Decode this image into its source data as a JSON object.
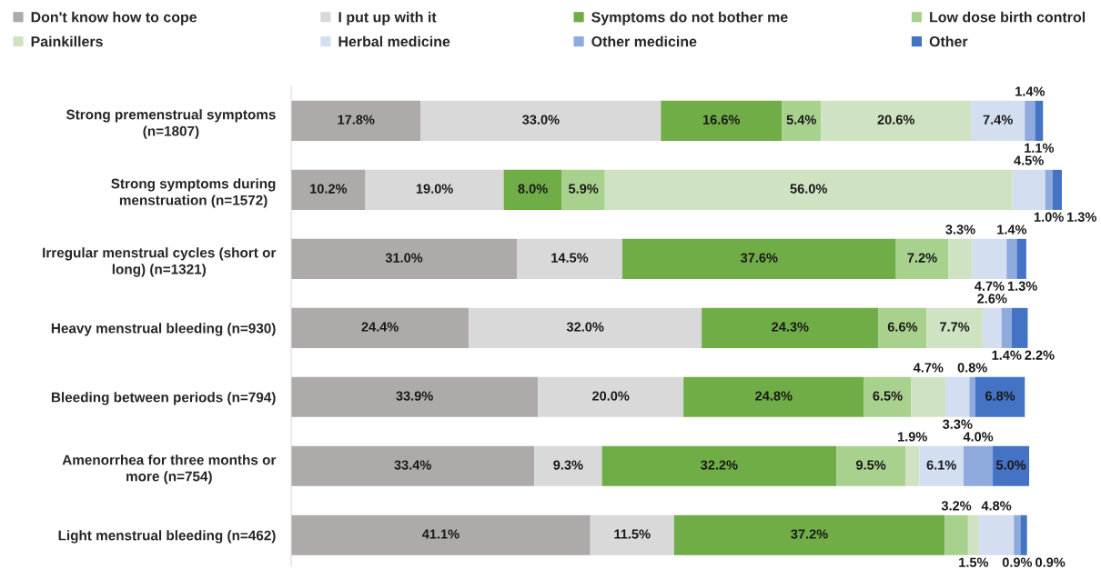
{
  "chart_data": {
    "type": "bar",
    "orientation": "horizontal",
    "stacked": true,
    "categories": [
      "Strong premenstrual symptoms\n(n=1807)",
      "Strong symptoms during\nmenstruation (n=1572)",
      "Irregular menstrual cycles (short or\nlong) (n=1321)",
      "Heavy menstrual bleeding (n=930)",
      "Bleeding between periods (n=794)",
      "Amenorrhea for three months or\nmore (n=754)",
      "Light menstrual bleeding (n=462)"
    ],
    "series": [
      {
        "name": "Don't know how to cope",
        "color": "#aeaaaa",
        "values": [
          17.8,
          10.2,
          31.0,
          24.4,
          33.9,
          33.4,
          41.1
        ],
        "value_labels": [
          "17.8%",
          "10.2%",
          "31.0%",
          "24.4%",
          "33.9%",
          "33.4%",
          "41.1%"
        ]
      },
      {
        "name": "I put up with it",
        "color": "#d9d9d9",
        "values": [
          33.0,
          19.0,
          14.5,
          32.0,
          20.0,
          9.3,
          11.5
        ],
        "value_labels": [
          "33.0%",
          "19.0%",
          "14.5%",
          "32.0%",
          "20.0%",
          "9.3%",
          "11.5%"
        ]
      },
      {
        "name": "Symptoms do not bother me",
        "color": "#70ad47",
        "values": [
          16.6,
          8.0,
          37.6,
          24.3,
          24.8,
          32.2,
          37.2
        ],
        "value_labels": [
          "16.6%",
          "8.0%",
          "37.6%",
          "24.3%",
          "24.8%",
          "32.2%",
          "37.2%"
        ]
      },
      {
        "name": "Low dose birth control",
        "color": "#a9d18e",
        "values": [
          5.4,
          5.9,
          7.2,
          6.6,
          6.5,
          9.5,
          3.2
        ],
        "value_labels": [
          "5.4%",
          "5.9%",
          "7.2%",
          "6.6%",
          "6.5%",
          "9.5%",
          "3.2%"
        ]
      },
      {
        "name": "Painkillers",
        "color": "#cfe3c2",
        "values": [
          20.6,
          56.0,
          3.3,
          7.7,
          4.7,
          1.9,
          1.5
        ],
        "value_labels": [
          "20.6%",
          "56.0%",
          "3.3%",
          "7.7%",
          "4.7%",
          "1.9%",
          "1.5%"
        ]
      },
      {
        "name": "Herbal medicine",
        "color": "#d3def1",
        "values": [
          7.4,
          4.5,
          4.7,
          2.6,
          3.3,
          6.1,
          4.8
        ],
        "value_labels": [
          "7.4%",
          "4.5%",
          "4.7%",
          "2.6%",
          "3.3%",
          "6.1%",
          "4.8%"
        ]
      },
      {
        "name": "Other medicine",
        "color": "#8faadc",
        "values": [
          1.4,
          1.0,
          1.4,
          1.4,
          0.8,
          4.0,
          0.9
        ],
        "value_labels": [
          "1.4%",
          "1.0%",
          "1.4%",
          "1.4%",
          "0.8%",
          "4.0%",
          "0.9%"
        ]
      },
      {
        "name": "Other",
        "color": "#4472c4",
        "values": [
          1.1,
          1.3,
          1.3,
          2.2,
          6.8,
          5.0,
          0.9
        ],
        "value_labels": [
          "1.1%",
          "1.3%",
          "1.3%",
          "2.2%",
          "6.8%",
          "5.0%",
          "0.9%"
        ]
      }
    ],
    "legend": "top",
    "tick_labels": "y"
  }
}
